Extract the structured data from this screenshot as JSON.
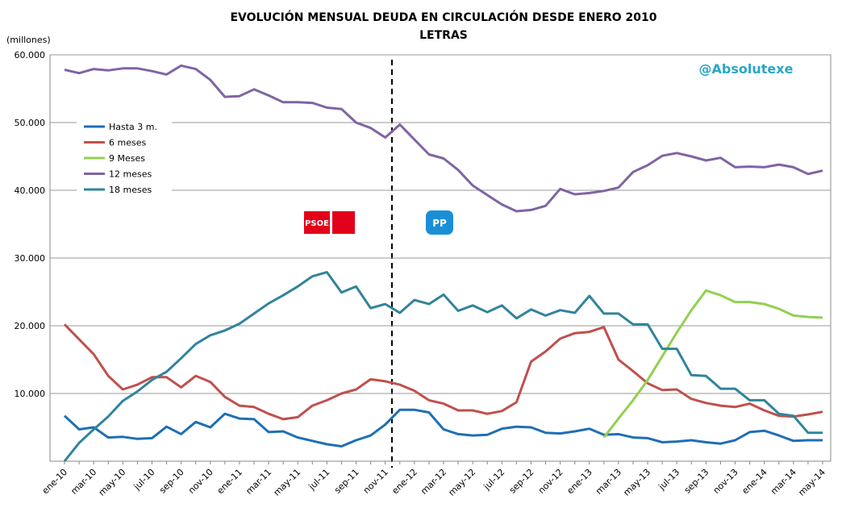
{
  "chart_data": {
    "type": "line",
    "title": "EVOLUCIÓN MENSUAL DEUDA EN CIRCULACIÓN DESDE ENERO 2010",
    "subtitle": "LETRAS",
    "y_label": "(millones)",
    "annotations": [
      "@Absolutexe",
      "PSOE",
      "PP"
    ],
    "categories": [
      "ene-10",
      null,
      "mar-10",
      null,
      "may-10",
      null,
      "jul-10",
      null,
      "sep-10",
      null,
      "nov-10",
      null,
      "ene-11",
      null,
      "mar-11",
      null,
      "may-11",
      null,
      "jul-11",
      null,
      "sep-11",
      null,
      "nov-11",
      null,
      "ene-12",
      null,
      "mar-12",
      null,
      "may-12",
      null,
      "jul-12",
      null,
      "sep-12",
      null,
      "nov-12",
      null,
      "ene-13",
      null,
      "mar-13",
      null,
      "may-13",
      null,
      "jul-13",
      null,
      "sep-13",
      null,
      "nov-13",
      null,
      "ene-14",
      null,
      "mar-14",
      null,
      "may-14"
    ],
    "series": [
      {
        "name": "Hasta 3 m.",
        "color": "#1f6fb4",
        "values": [
          6700,
          4700,
          5000,
          3500,
          3600,
          3300,
          3400,
          5100,
          4000,
          5800,
          5000,
          7000,
          6300,
          6200,
          4300,
          4400,
          3500,
          3000,
          2500,
          2200,
          3100,
          3800,
          5400,
          7600,
          7600,
          7200,
          4700,
          4000,
          3800,
          3900,
          4800,
          5100,
          5000,
          4200,
          4100,
          4400,
          4800,
          3900,
          4000,
          3500,
          3400,
          2800,
          2900,
          3100,
          2800,
          2600,
          3100,
          4300,
          4500,
          3800,
          3000,
          3100,
          3100
        ]
      },
      {
        "name": "6 meses",
        "color": "#c0504d",
        "values": [
          20200,
          18000,
          15800,
          12600,
          10600,
          11300,
          12400,
          12400,
          10900,
          12600,
          11700,
          9500,
          8200,
          8000,
          7000,
          6200,
          6500,
          8200,
          9000,
          10000,
          10600,
          12100,
          11800,
          11300,
          10400,
          9000,
          8500,
          7500,
          7500,
          7000,
          7400,
          8700,
          14700,
          16200,
          18100,
          18900,
          19100,
          19800,
          15000,
          13300,
          11500,
          10500,
          10600,
          9200,
          8600,
          8200,
          8000,
          8500,
          7500,
          6700,
          6600,
          6900,
          7300
        ]
      },
      {
        "name": "9 Meses",
        "color": "#92d050",
        "values": [
          null,
          null,
          null,
          null,
          null,
          null,
          null,
          null,
          null,
          null,
          null,
          null,
          null,
          null,
          null,
          null,
          null,
          null,
          null,
          null,
          null,
          null,
          null,
          null,
          null,
          null,
          null,
          null,
          null,
          null,
          null,
          null,
          null,
          null,
          null,
          null,
          null,
          3500,
          6300,
          9000,
          12000,
          15500,
          19000,
          22300,
          25200,
          24500,
          23500,
          23500,
          23200,
          22500,
          21500,
          21300,
          21200
        ]
      },
      {
        "name": "12 meses",
        "color": "#8064a2",
        "values": [
          57800,
          57300,
          57900,
          57700,
          58000,
          58000,
          57600,
          57100,
          58400,
          57900,
          56300,
          53800,
          53900,
          54900,
          54000,
          53000,
          53000,
          52900,
          52200,
          52000,
          50000,
          49200,
          47800,
          49700,
          47500,
          45300,
          44700,
          43000,
          40700,
          39300,
          37900,
          36900,
          37100,
          37700,
          40200,
          39400,
          39600,
          39900,
          40400,
          42700,
          43700,
          45100,
          45500,
          45000,
          44400,
          44800,
          43400,
          43500,
          43400,
          43800,
          43400,
          42400,
          42900
        ]
      },
      {
        "name": "18 meses",
        "color": "#31849b",
        "values": [
          0,
          2700,
          4700,
          6600,
          8900,
          10300,
          12000,
          13200,
          15200,
          17300,
          18600,
          19300,
          20300,
          21800,
          23300,
          24500,
          25800,
          27300,
          27900,
          24900,
          25800,
          22600,
          23200,
          21900,
          23800,
          23200,
          24600,
          22200,
          23000,
          22000,
          23000,
          21100,
          22400,
          21500,
          22300,
          21900,
          24400,
          21800,
          21800,
          20200,
          20200,
          16600,
          16600,
          12700,
          12600,
          10700,
          10700,
          9000,
          9000,
          7000,
          6700,
          4200,
          4200
        ]
      }
    ],
    "ylim": [
      0,
      60000
    ],
    "yticks": [
      {
        "value": 10000,
        "label": "10.000"
      },
      {
        "value": 20000,
        "label": "20.000"
      },
      {
        "value": 30000,
        "label": "30.000"
      },
      {
        "value": 40000,
        "label": "40.000"
      },
      {
        "value": 50000,
        "label": "50.000"
      },
      {
        "value": 60000,
        "label": "60.000"
      }
    ],
    "grid": true,
    "legend": "upper left"
  }
}
